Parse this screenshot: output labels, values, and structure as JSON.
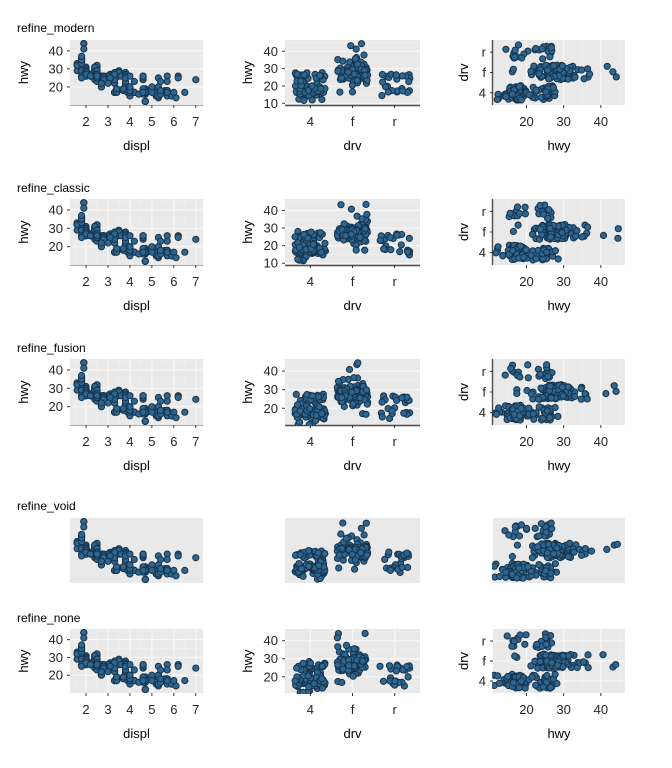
{
  "chart_data": {
    "type": "scatter",
    "rows": [
      {
        "title": "refine_modern",
        "theme": "modern",
        "hwy_ticks_mid": [
          10,
          20,
          30,
          40
        ]
      },
      {
        "title": "refine_classic",
        "theme": "classic",
        "hwy_ticks_mid": [
          10,
          20,
          30,
          40
        ]
      },
      {
        "title": "refine_fusion",
        "theme": "fusion",
        "hwy_ticks_mid": [
          20,
          30,
          40
        ]
      },
      {
        "title": "refine_void",
        "theme": "void",
        "hwy_ticks_mid": []
      },
      {
        "title": "refine_none",
        "theme": "none",
        "hwy_ticks_mid": [
          20,
          30,
          40
        ]
      }
    ],
    "panels": [
      {
        "xlabel": "displ",
        "ylabel": "hwy",
        "xticks": [
          2,
          3,
          4,
          5,
          6,
          7
        ],
        "yticks": [
          20,
          30,
          40
        ],
        "xlim": [
          1.27,
          7.33
        ],
        "ylim": [
          10,
          46
        ]
      },
      {
        "xlabel": "drv",
        "ylabel": "hwy",
        "xticks": [
          "4",
          "f",
          "r"
        ],
        "ylim": [
          9,
          46.5
        ]
      },
      {
        "xlabel": "hwy",
        "ylabel": "drv",
        "xticks": [
          20,
          30,
          40
        ],
        "yticks": [
          "r",
          "f",
          "4"
        ],
        "xlim": [
          11,
          46.5
        ]
      }
    ],
    "colors": {
      "point_fill": "#2e6690",
      "point_stroke": "#16344e",
      "panel_bg": "#e9e9e9",
      "grid_major": "#f7f7f7",
      "grid_minor": "#f0f0f0",
      "axis_line_dark": "#4d4d4d",
      "axis_line_light": "#adadad",
      "tick": "#333333",
      "tick_text": "#262626",
      "title_text": "#000000"
    },
    "points": [
      [
        1.8,
        29,
        "f"
      ],
      [
        1.8,
        29,
        "f"
      ],
      [
        2.0,
        31,
        "f"
      ],
      [
        2.0,
        30,
        "f"
      ],
      [
        2.8,
        26,
        "f"
      ],
      [
        2.8,
        26,
        "f"
      ],
      [
        3.1,
        27,
        "f"
      ],
      [
        2.4,
        30,
        "f"
      ],
      [
        2.4,
        29,
        "f"
      ],
      [
        3.1,
        26,
        "f"
      ],
      [
        3.5,
        29,
        "f"
      ],
      [
        3.6,
        26,
        "f"
      ],
      [
        2.4,
        24,
        "f"
      ],
      [
        3.0,
        24,
        "f"
      ],
      [
        3.3,
        22,
        "f"
      ],
      [
        3.3,
        22,
        "f"
      ],
      [
        3.3,
        24,
        "f"
      ],
      [
        3.3,
        24,
        "f"
      ],
      [
        3.3,
        17,
        "f"
      ],
      [
        3.8,
        22,
        "f"
      ],
      [
        3.8,
        21,
        "f"
      ],
      [
        3.8,
        23,
        "f"
      ],
      [
        4.0,
        17,
        "f"
      ],
      [
        1.6,
        33,
        "f"
      ],
      [
        1.6,
        32,
        "f"
      ],
      [
        1.6,
        32,
        "f"
      ],
      [
        1.6,
        29,
        "f"
      ],
      [
        1.6,
        32,
        "f"
      ],
      [
        1.8,
        34,
        "f"
      ],
      [
        1.8,
        36,
        "f"
      ],
      [
        1.8,
        36,
        "f"
      ],
      [
        2.0,
        29,
        "f"
      ],
      [
        2.4,
        26,
        "f"
      ],
      [
        2.4,
        27,
        "f"
      ],
      [
        2.4,
        30,
        "f"
      ],
      [
        2.4,
        31,
        "f"
      ],
      [
        2.5,
        26,
        "f"
      ],
      [
        2.5,
        29,
        "f"
      ],
      [
        3.3,
        28,
        "f"
      ],
      [
        2.0,
        26,
        "f"
      ],
      [
        2.0,
        27,
        "f"
      ],
      [
        2.0,
        30,
        "f"
      ],
      [
        2.0,
        29,
        "f"
      ],
      [
        2.7,
        26,
        "f"
      ],
      [
        2.7,
        24,
        "f"
      ],
      [
        2.7,
        24,
        "f"
      ],
      [
        2.4,
        29,
        "f"
      ],
      [
        2.4,
        27,
        "f"
      ],
      [
        2.5,
        31,
        "f"
      ],
      [
        2.5,
        32,
        "f"
      ],
      [
        3.5,
        27,
        "f"
      ],
      [
        3.5,
        26,
        "f"
      ],
      [
        3.0,
        26,
        "f"
      ],
      [
        3.0,
        25,
        "f"
      ],
      [
        3.5,
        28,
        "f"
      ],
      [
        3.1,
        26,
        "f"
      ],
      [
        3.8,
        28,
        "f"
      ],
      [
        3.8,
        27,
        "f"
      ],
      [
        3.8,
        26,
        "f"
      ],
      [
        5.3,
        25,
        "f"
      ],
      [
        2.2,
        26,
        "f"
      ],
      [
        2.2,
        27,
        "f"
      ],
      [
        2.4,
        28,
        "f"
      ],
      [
        2.4,
        31,
        "f"
      ],
      [
        3.0,
        26,
        "f"
      ],
      [
        3.0,
        26,
        "f"
      ],
      [
        3.5,
        28,
        "f"
      ],
      [
        2.2,
        26,
        "f"
      ],
      [
        2.2,
        27,
        "f"
      ],
      [
        2.4,
        29,
        "f"
      ],
      [
        2.4,
        31,
        "f"
      ],
      [
        3.0,
        26,
        "f"
      ],
      [
        3.0,
        26,
        "f"
      ],
      [
        3.3,
        27,
        "f"
      ],
      [
        1.8,
        30,
        "f"
      ],
      [
        1.8,
        33,
        "f"
      ],
      [
        1.8,
        35,
        "f"
      ],
      [
        1.8,
        35,
        "f"
      ],
      [
        1.8,
        37,
        "f"
      ],
      [
        2.0,
        29,
        "f"
      ],
      [
        2.0,
        26,
        "f"
      ],
      [
        2.0,
        29,
        "f"
      ],
      [
        2.0,
        29,
        "f"
      ],
      [
        2.8,
        24,
        "f"
      ],
      [
        1.9,
        44,
        "f"
      ],
      [
        2.0,
        29,
        "f"
      ],
      [
        2.0,
        26,
        "f"
      ],
      [
        2.0,
        29,
        "f"
      ],
      [
        2.0,
        29,
        "f"
      ],
      [
        2.5,
        29,
        "f"
      ],
      [
        2.5,
        29,
        "f"
      ],
      [
        2.8,
        24,
        "f"
      ],
      [
        2.8,
        23,
        "f"
      ],
      [
        1.9,
        44,
        "f"
      ],
      [
        1.9,
        41,
        "f"
      ],
      [
        2.0,
        29,
        "f"
      ],
      [
        2.0,
        26,
        "f"
      ],
      [
        2.5,
        28,
        "f"
      ],
      [
        2.5,
        29,
        "f"
      ],
      [
        1.8,
        29,
        "f"
      ],
      [
        1.8,
        29,
        "f"
      ],
      [
        2.0,
        28,
        "f"
      ],
      [
        2.0,
        29,
        "f"
      ],
      [
        2.8,
        26,
        "f"
      ],
      [
        2.8,
        26,
        "f"
      ],
      [
        3.6,
        26,
        "f"
      ],
      [
        1.8,
        26,
        "4"
      ],
      [
        1.8,
        25,
        "4"
      ],
      [
        2.0,
        28,
        "4"
      ],
      [
        2.0,
        27,
        "4"
      ],
      [
        2.8,
        25,
        "4"
      ],
      [
        2.8,
        25,
        "4"
      ],
      [
        3.1,
        25,
        "4"
      ],
      [
        3.1,
        25,
        "4"
      ],
      [
        2.8,
        24,
        "4"
      ],
      [
        3.1,
        25,
        "4"
      ],
      [
        4.2,
        23,
        "4"
      ],
      [
        5.3,
        14,
        "4"
      ],
      [
        5.3,
        19,
        "4"
      ],
      [
        5.7,
        15,
        "4"
      ],
      [
        6.5,
        17,
        "4"
      ],
      [
        3.7,
        19,
        "4"
      ],
      [
        3.7,
        18,
        "4"
      ],
      [
        3.9,
        17,
        "4"
      ],
      [
        3.9,
        17,
        "4"
      ],
      [
        4.7,
        19,
        "4"
      ],
      [
        4.7,
        19,
        "4"
      ],
      [
        4.7,
        12,
        "4"
      ],
      [
        5.2,
        17,
        "4"
      ],
      [
        5.2,
        15,
        "4"
      ],
      [
        3.9,
        17,
        "4"
      ],
      [
        4.7,
        17,
        "4"
      ],
      [
        4.7,
        17,
        "4"
      ],
      [
        4.7,
        18,
        "4"
      ],
      [
        5.2,
        16,
        "4"
      ],
      [
        5.7,
        18,
        "4"
      ],
      [
        5.9,
        15,
        "4"
      ],
      [
        4.7,
        17,
        "4"
      ],
      [
        4.7,
        16,
        "4"
      ],
      [
        4.7,
        12,
        "4"
      ],
      [
        4.7,
        12,
        "4"
      ],
      [
        4.7,
        16,
        "4"
      ],
      [
        4.7,
        17,
        "4"
      ],
      [
        5.2,
        15,
        "4"
      ],
      [
        5.2,
        16,
        "4"
      ],
      [
        5.7,
        17,
        "4"
      ],
      [
        5.9,
        15,
        "4"
      ],
      [
        4.0,
        17,
        "4"
      ],
      [
        4.0,
        17,
        "4"
      ],
      [
        4.0,
        17,
        "4"
      ],
      [
        4.0,
        18,
        "4"
      ],
      [
        4.6,
        17,
        "4"
      ],
      [
        5.0,
        20,
        "4"
      ],
      [
        4.2,
        17,
        "4"
      ],
      [
        4.2,
        17,
        "4"
      ],
      [
        4.6,
        16,
        "4"
      ],
      [
        4.6,
        17,
        "4"
      ],
      [
        4.6,
        17,
        "4"
      ],
      [
        5.4,
        17,
        "4"
      ],
      [
        3.0,
        22,
        "4"
      ],
      [
        3.7,
        19,
        "4"
      ],
      [
        4.0,
        17,
        "4"
      ],
      [
        4.7,
        17,
        "4"
      ],
      [
        4.7,
        17,
        "4"
      ],
      [
        4.7,
        12,
        "4"
      ],
      [
        5.7,
        18,
        "4"
      ],
      [
        6.1,
        14,
        "4"
      ],
      [
        4.0,
        15,
        "4"
      ],
      [
        4.2,
        17,
        "4"
      ],
      [
        4.4,
        16,
        "4"
      ],
      [
        4.6,
        18,
        "4"
      ],
      [
        4.0,
        17,
        "4"
      ],
      [
        4.0,
        19,
        "4"
      ],
      [
        4.6,
        19,
        "4"
      ],
      [
        5.0,
        17,
        "4"
      ],
      [
        3.3,
        17,
        "4"
      ],
      [
        3.3,
        17,
        "4"
      ],
      [
        4.0,
        18,
        "4"
      ],
      [
        5.6,
        18,
        "4"
      ],
      [
        2.5,
        26,
        "4"
      ],
      [
        2.5,
        24,
        "4"
      ],
      [
        2.5,
        26,
        "4"
      ],
      [
        2.5,
        23,
        "4"
      ],
      [
        2.5,
        25,
        "4"
      ],
      [
        2.5,
        27,
        "4"
      ],
      [
        2.2,
        26,
        "4"
      ],
      [
        2.2,
        26,
        "4"
      ],
      [
        2.5,
        26,
        "4"
      ],
      [
        2.5,
        25,
        "4"
      ],
      [
        2.5,
        27,
        "4"
      ],
      [
        2.5,
        25,
        "4"
      ],
      [
        2.5,
        27,
        "4"
      ],
      [
        2.5,
        26,
        "4"
      ],
      [
        2.7,
        20,
        "4"
      ],
      [
        2.7,
        22,
        "4"
      ],
      [
        3.4,
        17,
        "4"
      ],
      [
        3.4,
        19,
        "4"
      ],
      [
        4.0,
        20,
        "4"
      ],
      [
        4.7,
        17,
        "4"
      ],
      [
        4.7,
        17,
        "4"
      ],
      [
        5.7,
        18,
        "4"
      ],
      [
        2.7,
        20,
        "4"
      ],
      [
        2.7,
        22,
        "4"
      ],
      [
        2.7,
        22,
        "4"
      ],
      [
        3.4,
        17,
        "4"
      ],
      [
        3.4,
        19,
        "4"
      ],
      [
        4.0,
        18,
        "4"
      ],
      [
        4.0,
        20,
        "4"
      ],
      [
        5.3,
        20,
        "r"
      ],
      [
        5.3,
        15,
        "r"
      ],
      [
        5.3,
        20,
        "r"
      ],
      [
        5.7,
        17,
        "r"
      ],
      [
        6.0,
        17,
        "r"
      ],
      [
        5.7,
        26,
        "r"
      ],
      [
        5.7,
        23,
        "r"
      ],
      [
        6.2,
        26,
        "r"
      ],
      [
        6.2,
        25,
        "r"
      ],
      [
        7.0,
        24,
        "r"
      ],
      [
        4.6,
        17,
        "r"
      ],
      [
        5.4,
        17,
        "r"
      ],
      [
        5.4,
        18,
        "r"
      ],
      [
        3.8,
        26,
        "r"
      ],
      [
        3.8,
        25,
        "r"
      ],
      [
        4.0,
        26,
        "r"
      ],
      [
        4.6,
        24,
        "r"
      ],
      [
        4.6,
        25,
        "r"
      ],
      [
        4.6,
        26,
        "r"
      ],
      [
        4.6,
        26,
        "r"
      ],
      [
        5.4,
        23,
        "r"
      ],
      [
        5.4,
        17,
        "r"
      ],
      [
        5.4,
        16,
        "r"
      ],
      [
        5.4,
        18,
        "r"
      ]
    ]
  }
}
